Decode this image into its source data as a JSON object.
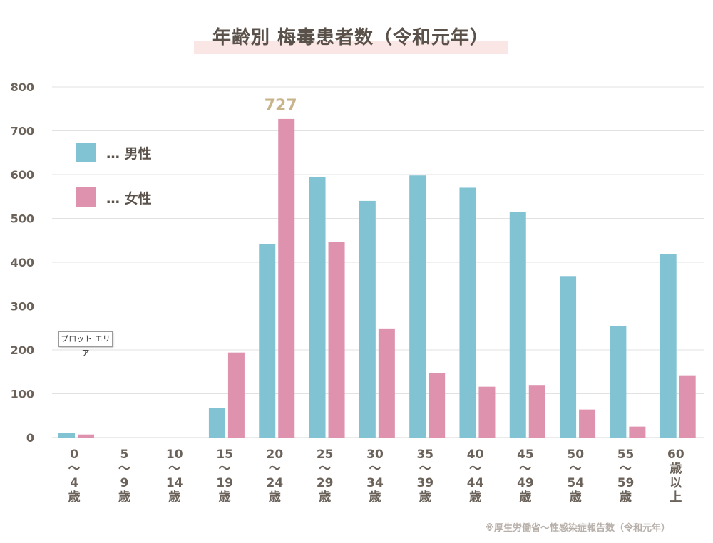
{
  "title": "年齢別 梅毒患者数（令和元年）",
  "legend": [
    {
      "key": "male",
      "label": "… 男性",
      "color": "#82c3d3"
    },
    {
      "key": "female",
      "label": "… 女性",
      "color": "#de92ae"
    }
  ],
  "plot_area_label": "プロット エリア",
  "source": "※厚生労働省～性感染症報告数（令和元年）",
  "chart_data": {
    "type": "bar",
    "title": "年齢別 梅毒患者数（令和元年）",
    "xlabel": "",
    "ylabel": "",
    "ylim": [
      0,
      800
    ],
    "yticks": [
      0,
      100,
      200,
      300,
      400,
      500,
      600,
      700,
      800
    ],
    "grid": true,
    "legend_position": "top-left",
    "categories": [
      [
        "0",
        "～",
        "4",
        "歳"
      ],
      [
        "5",
        "～",
        "9",
        "歳"
      ],
      [
        "10",
        "～",
        "14",
        "歳"
      ],
      [
        "15",
        "～",
        "19",
        "歳"
      ],
      [
        "20",
        "～",
        "24",
        "歳"
      ],
      [
        "25",
        "～",
        "29",
        "歳"
      ],
      [
        "30",
        "～",
        "34",
        "歳"
      ],
      [
        "35",
        "～",
        "39",
        "歳"
      ],
      [
        "40",
        "～",
        "44",
        "歳"
      ],
      [
        "45",
        "～",
        "49",
        "歳"
      ],
      [
        "50",
        "～",
        "54",
        "歳"
      ],
      [
        "55",
        "～",
        "59",
        "歳"
      ],
      [
        "60",
        "歳",
        "以",
        "上"
      ]
    ],
    "series": [
      {
        "name": "男性",
        "color": "#82c3d3",
        "values": [
          11,
          0,
          0,
          67,
          441,
          595,
          540,
          598,
          570,
          514,
          367,
          254,
          419
        ]
      },
      {
        "name": "女性",
        "color": "#de92ae",
        "values": [
          7,
          0,
          0,
          194,
          727,
          447,
          249,
          147,
          116,
          120,
          64,
          25,
          142
        ]
      }
    ],
    "annotations": [
      {
        "text": "727",
        "series": "女性",
        "category_index": 4,
        "color": "#c9b48a"
      }
    ]
  }
}
